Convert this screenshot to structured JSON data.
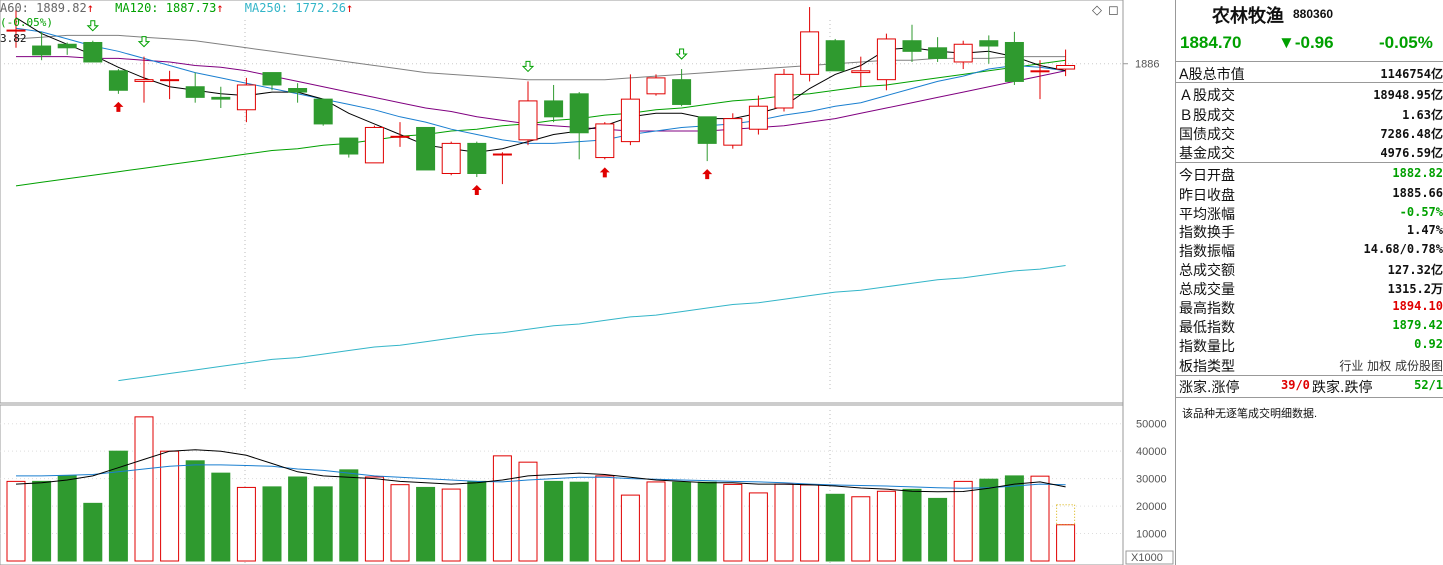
{
  "legend": {
    "ma60": "A60: 1889.82",
    "ma120": "MA120: 1887.73",
    "ma250": "MA250: 1772.26",
    "up_arrow": "↑",
    "change": "(-0.05%)",
    "partial_value": "3.82"
  },
  "colors": {
    "up": "#e00000",
    "down": "#2f9a2f",
    "ma60": "#808080",
    "ma120": "#00a000",
    "ma250": "#33b5c8",
    "ma5": "#000000",
    "ma10": "#1a7fd0",
    "ma20": "#800080"
  },
  "panel": {
    "title": "农林牧渔",
    "code": "880360",
    "price": "1884.70",
    "change": "▼-0.96",
    "change_pct": "-0.05%",
    "rows": [
      {
        "label": "A股总市值",
        "value": "1146754亿",
        "color": "black"
      },
      {
        "label": "Ａ股成交",
        "value": "18948.95亿",
        "color": "black"
      },
      {
        "label": "Ｂ股成交",
        "value": "1.63亿",
        "color": "black"
      },
      {
        "label": "国债成交",
        "value": "7286.48亿",
        "color": "black"
      },
      {
        "label": "基金成交",
        "value": "4976.59亿",
        "color": "black"
      },
      {
        "label": "今日开盘",
        "value": "1882.82",
        "color": "green"
      },
      {
        "label": "昨日收盘",
        "value": "1885.66",
        "color": "black"
      },
      {
        "label": "平均涨幅",
        "value": "-0.57%",
        "color": "green"
      },
      {
        "label": "指数换手",
        "value": "1.47%",
        "color": "black"
      },
      {
        "label": "指数振幅",
        "value": "14.68/0.78%",
        "color": "black"
      },
      {
        "label": "总成交额",
        "value": "127.32亿",
        "color": "black"
      },
      {
        "label": "总成交量",
        "value": "1315.2万",
        "color": "black"
      },
      {
        "label": "最高指数",
        "value": "1894.10",
        "color": "red"
      },
      {
        "label": "最低指数",
        "value": "1879.42",
        "color": "green"
      },
      {
        "label": "指数量比",
        "value": "0.92",
        "color": "green"
      },
      {
        "label": "板指类型",
        "value": "行业 加权 成份股图",
        "color": "plain"
      }
    ],
    "updown": {
      "rise_label": "涨家.涨停",
      "rise_value": "39/0",
      "fall_label": "跌家.跌停",
      "fall_value": "52/1"
    },
    "note": "该品种无逐笔成交明细数据."
  },
  "chart_data": {
    "type": "candlestick",
    "price_axis": {
      "ticks": [
        1886
      ]
    },
    "volume_axis": {
      "ticks": [
        50000,
        40000,
        30000,
        20000,
        10000
      ],
      "unit": "X1000"
    },
    "candles": [
      {
        "o": 1905,
        "c": 1905,
        "h": 1918,
        "l": 1895
      },
      {
        "o": 1896,
        "c": 1891,
        "h": 1904,
        "l": 1888
      },
      {
        "o": 1897,
        "c": 1895,
        "h": 1898,
        "l": 1891
      },
      {
        "o": 1898,
        "c": 1887,
        "h": 1899,
        "l": 1887
      },
      {
        "o": 1882,
        "c": 1871,
        "h": 1883,
        "l": 1869
      },
      {
        "o": 1876,
        "c": 1877,
        "h": 1890,
        "l": 1864
      },
      {
        "o": 1877,
        "c": 1877,
        "h": 1882,
        "l": 1866
      },
      {
        "o": 1873,
        "c": 1867,
        "h": 1881,
        "l": 1864
      },
      {
        "o": 1867,
        "c": 1866,
        "h": 1873,
        "l": 1861
      },
      {
        "o": 1860,
        "c": 1874,
        "h": 1878,
        "l": 1853
      },
      {
        "o": 1881,
        "c": 1874,
        "h": 1881,
        "l": 1871
      },
      {
        "o": 1872,
        "c": 1870,
        "h": 1875,
        "l": 1864
      },
      {
        "o": 1866,
        "c": 1852,
        "h": 1866,
        "l": 1851
      },
      {
        "o": 1844,
        "c": 1835,
        "h": 1844,
        "l": 1833
      },
      {
        "o": 1830,
        "c": 1850,
        "h": 1851,
        "l": 1830
      },
      {
        "o": 1845,
        "c": 1845,
        "h": 1853,
        "l": 1839
      },
      {
        "o": 1850,
        "c": 1826,
        "h": 1850,
        "l": 1826
      },
      {
        "o": 1824,
        "c": 1841,
        "h": 1842,
        "l": 1823
      },
      {
        "o": 1841,
        "c": 1824,
        "h": 1842,
        "l": 1822
      },
      {
        "o": 1835,
        "c": 1835,
        "h": 1836,
        "l": 1818
      },
      {
        "o": 1843,
        "c": 1865,
        "h": 1876,
        "l": 1840
      },
      {
        "o": 1865,
        "c": 1856,
        "h": 1874,
        "l": 1853
      },
      {
        "o": 1869,
        "c": 1847,
        "h": 1870,
        "l": 1832
      },
      {
        "o": 1833,
        "c": 1852,
        "h": 1853,
        "l": 1832
      },
      {
        "o": 1842,
        "c": 1866,
        "h": 1880,
        "l": 1840
      },
      {
        "o": 1869,
        "c": 1878,
        "h": 1880,
        "l": 1868
      },
      {
        "o": 1877,
        "c": 1863,
        "h": 1883,
        "l": 1862
      },
      {
        "o": 1856,
        "c": 1841,
        "h": 1856,
        "l": 1831
      },
      {
        "o": 1840,
        "c": 1855,
        "h": 1858,
        "l": 1838
      },
      {
        "o": 1849,
        "c": 1862,
        "h": 1868,
        "l": 1846
      },
      {
        "o": 1861,
        "c": 1880,
        "h": 1883,
        "l": 1859
      },
      {
        "o": 1880,
        "c": 1904,
        "h": 1918,
        "l": 1876
      },
      {
        "o": 1899,
        "c": 1882,
        "h": 1900,
        "l": 1882
      },
      {
        "o": 1881,
        "c": 1882,
        "h": 1890,
        "l": 1873
      },
      {
        "o": 1877,
        "c": 1900,
        "h": 1903,
        "l": 1871
      },
      {
        "o": 1899,
        "c": 1893,
        "h": 1908,
        "l": 1887
      },
      {
        "o": 1895,
        "c": 1889,
        "h": 1901,
        "l": 1887
      },
      {
        "o": 1887,
        "c": 1897,
        "h": 1899,
        "l": 1883
      },
      {
        "o": 1899,
        "c": 1896,
        "h": 1902,
        "l": 1886
      },
      {
        "o": 1898,
        "c": 1876,
        "h": 1904,
        "l": 1874
      },
      {
        "o": 1882,
        "c": 1882,
        "h": 1888,
        "l": 1866
      },
      {
        "o": 1883,
        "c": 1885,
        "h": 1894,
        "l": 1879
      }
    ],
    "volumes": [
      29000,
      29000,
      31000,
      21000,
      40000,
      52500,
      40000,
      36500,
      32000,
      26800,
      27000,
      30600,
      27000,
      33200,
      30600,
      27800,
      26800,
      26200,
      29000,
      38300,
      36000,
      29000,
      28700,
      31000,
      24000,
      28800,
      28700,
      28700,
      27900,
      24800,
      28000,
      27700,
      24300,
      23400,
      25400,
      26100,
      22800,
      29000,
      29800,
      31000,
      30900,
      13200
    ],
    "ma_lines": {
      "ma5": [
        1912,
        1903,
        1897,
        1891,
        1884,
        1878,
        1873,
        1871,
        1869,
        1868,
        1870,
        1870,
        1866,
        1858,
        1852,
        1846,
        1840,
        1838,
        1836,
        1838,
        1842,
        1846,
        1848,
        1851,
        1856,
        1858,
        1858,
        1855,
        1855,
        1858,
        1862,
        1872,
        1880,
        1885,
        1894,
        1895,
        1893,
        1892,
        1893,
        1890,
        1885,
        1882
      ],
      "ma10": [
        1906,
        1904,
        1900,
        1896,
        1893,
        1889,
        1885,
        1881,
        1878,
        1875,
        1872,
        1869,
        1866,
        1863,
        1860,
        1856,
        1853,
        1849,
        1846,
        1843,
        1841,
        1841,
        1842,
        1843,
        1846,
        1848,
        1850,
        1851,
        1852,
        1854,
        1857,
        1859,
        1862,
        1864,
        1868,
        1872,
        1876,
        1879,
        1883,
        1885,
        1884,
        1882
      ],
      "ma20": [
        1890,
        1890,
        1890,
        1889,
        1889,
        1888,
        1887,
        1885,
        1884,
        1882,
        1879,
        1876,
        1873,
        1870,
        1867,
        1864,
        1861,
        1859,
        1856,
        1854,
        1852,
        1851,
        1850,
        1849,
        1848,
        1848,
        1848,
        1848,
        1849,
        1850,
        1851,
        1853,
        1855,
        1858,
        1861,
        1864,
        1867,
        1870,
        1873,
        1876,
        1879,
        1882
      ],
      "ma60": [
        1900,
        1901,
        1902,
        1902,
        1902,
        1901,
        1900,
        1899,
        1897,
        1895,
        1893,
        1891,
        1889,
        1887,
        1885,
        1883,
        1881,
        1880,
        1879,
        1878,
        1877,
        1877,
        1877,
        1877,
        1878,
        1879,
        1880,
        1881,
        1882,
        1883,
        1884,
        1885,
        1886,
        1887,
        1888,
        1888,
        1889,
        1889,
        1889,
        1890,
        1890,
        1890
      ],
      "ma120": [
        1817,
        1819,
        1821,
        1823,
        1825,
        1827,
        1829,
        1831,
        1833,
        1835,
        1837,
        1838,
        1840,
        1841,
        1843,
        1845,
        1846,
        1848,
        1849,
        1851,
        1852,
        1854,
        1855,
        1857,
        1858,
        1860,
        1861,
        1863,
        1865,
        1866,
        1868,
        1869,
        1871,
        1873,
        1874,
        1876,
        1878,
        1880,
        1882,
        1884,
        1886,
        1888
      ]
    },
    "ma250_line": [
      1707,
      1709,
      1711,
      1713,
      1715,
      1717,
      1719,
      1720,
      1722,
      1724,
      1726,
      1727,
      1729,
      1731,
      1733,
      1734,
      1736,
      1738,
      1739,
      1741,
      1743,
      1744,
      1746,
      1748,
      1750,
      1751,
      1753,
      1755,
      1757,
      1758,
      1760,
      1762,
      1764,
      1765,
      1767,
      1769,
      1770,
      1772
    ],
    "volume_ma": {
      "ma5": [
        28000,
        28500,
        29500,
        31000,
        34000,
        37000,
        40000,
        40500,
        40000,
        38500,
        35500,
        32500,
        31000,
        30500,
        30000,
        29000,
        28500,
        28000,
        28500,
        29500,
        31000,
        31500,
        32000,
        31500,
        30500,
        29500,
        29000,
        28500,
        28500,
        28000,
        28000,
        27800,
        27300,
        26600,
        26200,
        25400,
        25200,
        25300,
        26500,
        28000,
        28800,
        27000
      ],
      "ma10": [
        31000,
        31000,
        31200,
        31500,
        32500,
        33500,
        34500,
        35000,
        35000,
        34800,
        34500,
        33500,
        33000,
        32000,
        31000,
        30500,
        30000,
        29500,
        29000,
        28800,
        29500,
        30000,
        30500,
        30500,
        30000,
        29800,
        29500,
        29300,
        29000,
        28800,
        28500,
        28000,
        27700,
        27500,
        27300,
        27000,
        26700,
        26500,
        26700,
        27300,
        28000,
        27800
      ]
    }
  }
}
